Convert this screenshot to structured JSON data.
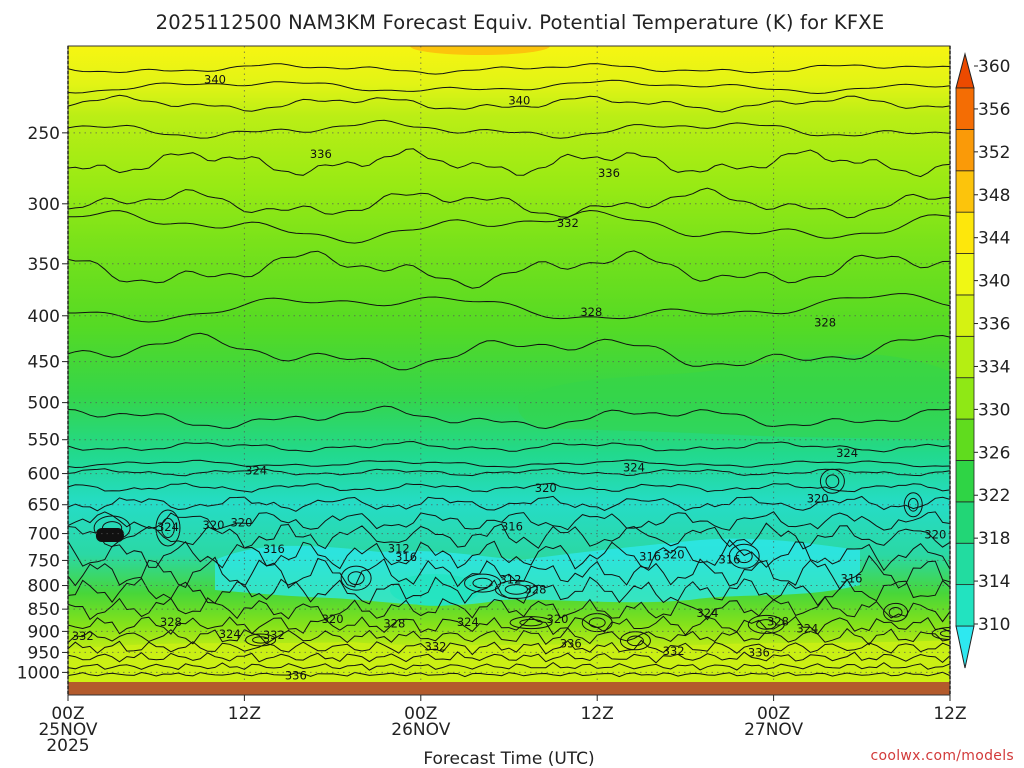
{
  "chart_data": {
    "type": "heatmap",
    "title": "2025112500 NAM3KM Forecast Equiv. Potential Temperature (K) for KFXE",
    "xlabel": "Forecast Time (UTC)",
    "ylabel": "",
    "credit": "coolwx.com/models",
    "x_ticks": [
      {
        "hour": 0,
        "lines": [
          "00Z",
          "25NOV",
          "2025"
        ]
      },
      {
        "hour": 12,
        "lines": [
          "12Z"
        ]
      },
      {
        "hour": 24,
        "lines": [
          "00Z",
          "26NOV"
        ]
      },
      {
        "hour": 36,
        "lines": [
          "12Z"
        ]
      },
      {
        "hour": 48,
        "lines": [
          "00Z",
          "27NOV"
        ]
      },
      {
        "hour": 60,
        "lines": [
          "12Z"
        ]
      }
    ],
    "xlim": [
      0,
      60
    ],
    "y_ticks": [
      250,
      300,
      350,
      400,
      450,
      500,
      550,
      600,
      650,
      700,
      750,
      800,
      850,
      900,
      950,
      1000
    ],
    "ylim_hpa": [
      1025,
      200
    ],
    "colorbar": {
      "labels": [
        310,
        314,
        318,
        322,
        326,
        330,
        334,
        336,
        340,
        344,
        348,
        352,
        356,
        360
      ],
      "colors": [
        "#2ee8f0",
        "#22e3c0",
        "#22dca0",
        "#22d676",
        "#2fd445",
        "#60dc1e",
        "#8fe815",
        "#b5ee12",
        "#d5f212",
        "#f0f714",
        "#fde70c",
        "#fcc40c",
        "#fa9a08",
        "#f46d04",
        "#ec4a00"
      ]
    },
    "contour_labels": [
      {
        "text": "340",
        "hour": 10.0,
        "hpa": 218
      },
      {
        "text": "340",
        "hour": 30.7,
        "hpa": 230
      },
      {
        "text": "336",
        "hour": 17.2,
        "hpa": 264
      },
      {
        "text": "336",
        "hour": 36.8,
        "hpa": 277
      },
      {
        "text": "332",
        "hour": 34.0,
        "hpa": 315
      },
      {
        "text": "328",
        "hour": 35.6,
        "hpa": 396
      },
      {
        "text": "328",
        "hour": 51.5,
        "hpa": 407
      },
      {
        "text": "324",
        "hour": 53.0,
        "hpa": 569
      },
      {
        "text": "324",
        "hour": 12.8,
        "hpa": 595
      },
      {
        "text": "324",
        "hour": 38.5,
        "hpa": 591
      },
      {
        "text": "320",
        "hour": 32.5,
        "hpa": 623
      },
      {
        "text": "320",
        "hour": 51.0,
        "hpa": 640
      },
      {
        "text": "316",
        "hour": 30.2,
        "hpa": 687
      },
      {
        "text": "324",
        "hour": 6.8,
        "hpa": 688
      },
      {
        "text": "320",
        "hour": 9.9,
        "hpa": 685
      },
      {
        "text": "320",
        "hour": 11.8,
        "hpa": 680
      },
      {
        "text": "320",
        "hour": 59.0,
        "hpa": 702
      },
      {
        "text": "316",
        "hour": 14.0,
        "hpa": 728
      },
      {
        "text": "312",
        "hour": 22.5,
        "hpa": 727
      },
      {
        "text": "316",
        "hour": 23.0,
        "hpa": 743
      },
      {
        "text": "316",
        "hour": 39.6,
        "hpa": 742
      },
      {
        "text": "320",
        "hour": 41.2,
        "hpa": 739
      },
      {
        "text": "316",
        "hour": 45.0,
        "hpa": 748
      },
      {
        "text": "312",
        "hour": 30.1,
        "hpa": 788
      },
      {
        "text": "328",
        "hour": 31.8,
        "hpa": 808
      },
      {
        "text": "316",
        "hour": 53.3,
        "hpa": 786
      },
      {
        "text": "324",
        "hour": 43.5,
        "hpa": 858
      },
      {
        "text": "328",
        "hour": 7.0,
        "hpa": 878
      },
      {
        "text": "320",
        "hour": 18.0,
        "hpa": 872
      },
      {
        "text": "328",
        "hour": 22.2,
        "hpa": 882
      },
      {
        "text": "324",
        "hour": 27.2,
        "hpa": 878
      },
      {
        "text": "320",
        "hour": 33.3,
        "hpa": 872
      },
      {
        "text": "328",
        "hour": 48.3,
        "hpa": 877
      },
      {
        "text": "324",
        "hour": 50.3,
        "hpa": 893
      },
      {
        "text": "332",
        "hour": 1.0,
        "hpa": 911
      },
      {
        "text": "324",
        "hour": 11.0,
        "hpa": 906
      },
      {
        "text": "332",
        "hour": 14.0,
        "hpa": 908
      },
      {
        "text": "332",
        "hour": 25.0,
        "hpa": 936
      },
      {
        "text": "336",
        "hour": 34.2,
        "hpa": 929
      },
      {
        "text": "332",
        "hour": 41.2,
        "hpa": 946
      },
      {
        "text": "336",
        "hour": 47.0,
        "hpa": 950
      },
      {
        "text": "336",
        "hour": 15.5,
        "hpa": 1008
      }
    ]
  },
  "colors": {
    "ground": "#b35a2c",
    "credit": "#d23a3a",
    "text": "#222222"
  }
}
